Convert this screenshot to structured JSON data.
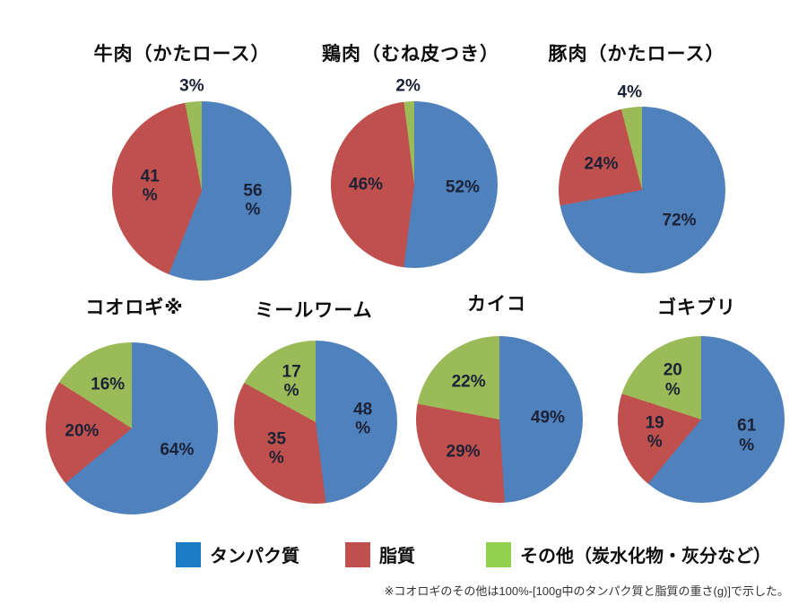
{
  "palette": {
    "protein": "#4f81bd",
    "fat": "#c0504d",
    "other": "#9bbb59",
    "label_text": "#1c2236"
  },
  "legend": {
    "items": [
      {
        "name": "protein",
        "label": "タンパク質",
        "color": "#1b7bc4"
      },
      {
        "name": "fat",
        "label": "脂質",
        "color": "#c0504d"
      },
      {
        "name": "other",
        "label": "その他（炭水化物・灰分など）",
        "color": "#92d050"
      }
    ]
  },
  "footnote": "※コオロギのその他は100%-[100g中のタンパク質と脂質の重さ(g)]で示した。",
  "chart_data": [
    {
      "type": "pie",
      "title": "牛肉（かたロース）",
      "direction": "clockwise",
      "start_angle_deg": 0,
      "slices": [
        {
          "name": "タンパク質",
          "value": 56,
          "label": "56\n%"
        },
        {
          "name": "脂質",
          "value": 41,
          "label": "41\n%"
        },
        {
          "name": "その他",
          "value": 3,
          "label": "3%"
        }
      ]
    },
    {
      "type": "pie",
      "title": "鶏肉（むね皮つき）",
      "direction": "clockwise",
      "start_angle_deg": 0,
      "slices": [
        {
          "name": "タンパク質",
          "value": 52,
          "label": "52%"
        },
        {
          "name": "脂質",
          "value": 46,
          "label": "46%"
        },
        {
          "name": "その他",
          "value": 2,
          "label": "2%"
        }
      ]
    },
    {
      "type": "pie",
      "title": "豚肉（かたロース）",
      "direction": "clockwise",
      "start_angle_deg": 0,
      "slices": [
        {
          "name": "タンパク質",
          "value": 72,
          "label": "72%"
        },
        {
          "name": "脂質",
          "value": 24,
          "label": "24%"
        },
        {
          "name": "その他",
          "value": 4,
          "label": "4%"
        }
      ]
    },
    {
      "type": "pie",
      "title": "コオロギ※",
      "direction": "clockwise",
      "start_angle_deg": 0,
      "slices": [
        {
          "name": "タンパク質",
          "value": 64,
          "label": "64%"
        },
        {
          "name": "脂質",
          "value": 20,
          "label": "20%"
        },
        {
          "name": "その他",
          "value": 16,
          "label": "16%"
        }
      ]
    },
    {
      "type": "pie",
      "title": "ミールワーム",
      "direction": "clockwise",
      "start_angle_deg": 0,
      "slices": [
        {
          "name": "タンパク質",
          "value": 48,
          "label": "48\n%"
        },
        {
          "name": "脂質",
          "value": 35,
          "label": "35\n%"
        },
        {
          "name": "その他",
          "value": 17,
          "label": "17\n%"
        }
      ]
    },
    {
      "type": "pie",
      "title": "カイコ",
      "direction": "clockwise",
      "start_angle_deg": 0,
      "slices": [
        {
          "name": "タンパク質",
          "value": 49,
          "label": "49%"
        },
        {
          "name": "脂質",
          "value": 29,
          "label": "29%"
        },
        {
          "name": "その他",
          "value": 22,
          "label": "22%"
        }
      ]
    },
    {
      "type": "pie",
      "title": "ゴキブリ",
      "direction": "clockwise",
      "start_angle_deg": 0,
      "slices": [
        {
          "name": "タンパク質",
          "value": 61,
          "label": "61\n%"
        },
        {
          "name": "脂質",
          "value": 19,
          "label": "19\n%"
        },
        {
          "name": "その他",
          "value": 20,
          "label": "20\n%"
        }
      ]
    }
  ]
}
